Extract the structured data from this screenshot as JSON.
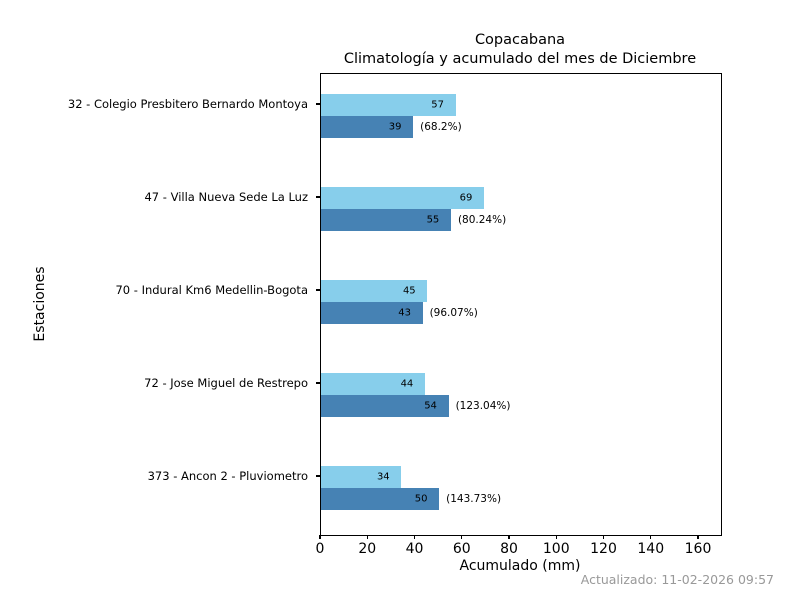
{
  "title": {
    "line1": "Copacabana",
    "line2": "Climatología y acumulado del mes de Diciembre"
  },
  "axes": {
    "xlabel": "Acumulado (mm)",
    "ylabel": "Estaciones",
    "x_ticks": [
      0,
      20,
      40,
      60,
      80,
      100,
      120,
      140,
      160
    ]
  },
  "footer": {
    "updated_text": "Actualizado: 11-02-2026 09:57"
  },
  "colors": {
    "climatology_bar": "#87CEEB",
    "accumulated_bar": "#4682B4",
    "axis": "#000000",
    "footer_text": "#999999"
  },
  "chart_data": {
    "type": "bar",
    "orientation": "horizontal",
    "title": "Copacabana — Climatología y acumulado del mes de Diciembre",
    "xlabel": "Acumulado (mm)",
    "ylabel": "Estaciones",
    "xlim": [
      0,
      169.3
    ],
    "x_ticks": [
      0,
      20,
      40,
      60,
      80,
      100,
      120,
      140,
      160
    ],
    "grid": false,
    "legend": "none",
    "series": [
      {
        "name": "Climatología",
        "color": "#87CEEB",
        "values": [
          57,
          69,
          45,
          44,
          34
        ]
      },
      {
        "name": "Acumulado",
        "color": "#4682B4",
        "values": [
          39,
          55,
          43,
          54,
          50
        ]
      }
    ],
    "stations": [
      {
        "label": "32 - Colegio Presbitero Bernardo Montoya",
        "climatology_mm": 57,
        "accumulated_mm": 39,
        "percent_label": "(68.2%)"
      },
      {
        "label": "47 - Villa Nueva Sede La Luz",
        "climatology_mm": 69,
        "accumulated_mm": 55,
        "percent_label": "(80.24%)"
      },
      {
        "label": "70 - Indural Km6 Medellin-Bogota",
        "climatology_mm": 45,
        "accumulated_mm": 43,
        "percent_label": "(96.07%)"
      },
      {
        "label": "72 - Jose Miguel de Restrepo",
        "climatology_mm": 44,
        "accumulated_mm": 54,
        "percent_label": "(123.04%)"
      },
      {
        "label": "373 - Ancon 2 - Pluviometro",
        "climatology_mm": 34,
        "accumulated_mm": 50,
        "percent_label": "(143.73%)"
      }
    ]
  }
}
